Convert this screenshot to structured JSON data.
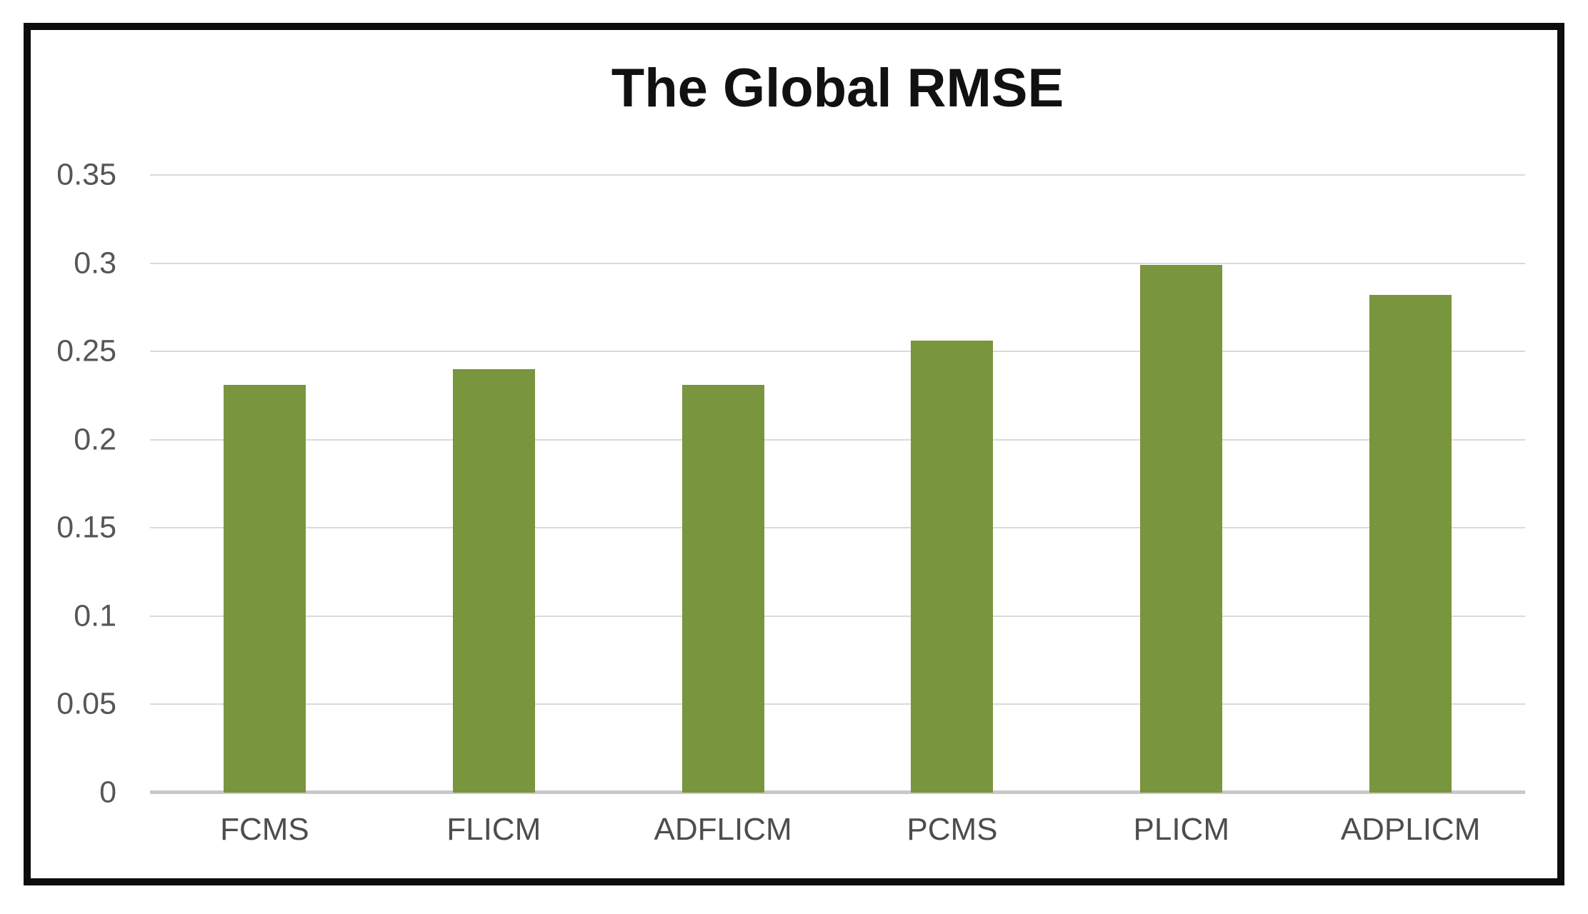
{
  "chart_data": {
    "type": "bar",
    "title": "The Global RMSE",
    "categories": [
      "FCMS",
      "FLICM",
      "ADFLICM",
      "PCMS",
      "PLICM",
      "ADPLICM"
    ],
    "values": [
      0.231,
      0.24,
      0.231,
      0.256,
      0.299,
      0.282
    ],
    "xlabel": "",
    "ylabel": "",
    "ylim": [
      0,
      0.35
    ],
    "ytick_step": 0.05,
    "ytick_labels": [
      "0.35",
      "0.3",
      "0.25",
      "0.2",
      "0.15",
      "0.1",
      "0.05",
      "0"
    ],
    "grid": "horizontal",
    "legend_position": "none",
    "colors": {
      "bar": "#79953D",
      "gridline": "#DADADA",
      "axis_line": "#C8C8C8",
      "tick_label": "#565656",
      "title": "#111111",
      "frame_border": "#0D0D0D",
      "background": "#FFFFFF"
    }
  }
}
